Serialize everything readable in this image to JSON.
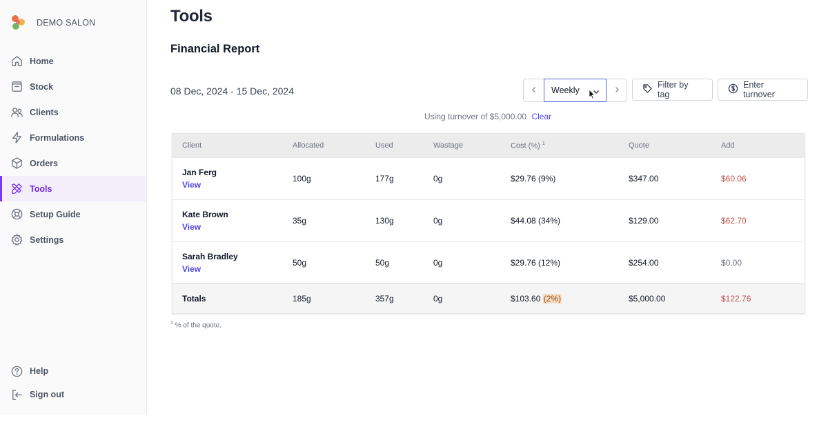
{
  "brand": {
    "name": "DEMO SALON"
  },
  "sidebar": {
    "items": [
      {
        "label": "Home",
        "icon": "home-icon"
      },
      {
        "label": "Stock",
        "icon": "box-icon"
      },
      {
        "label": "Clients",
        "icon": "users-icon"
      },
      {
        "label": "Formulations",
        "icon": "bolt-icon"
      },
      {
        "label": "Orders",
        "icon": "cube-icon"
      },
      {
        "label": "Tools",
        "icon": "tools-icon",
        "active": true
      },
      {
        "label": "Setup Guide",
        "icon": "lifebuoy-icon"
      },
      {
        "label": "Settings",
        "icon": "gear-icon"
      }
    ],
    "bottom": [
      {
        "label": "Help",
        "icon": "help-icon"
      },
      {
        "label": "Sign out",
        "icon": "sign-out-icon"
      }
    ]
  },
  "page": {
    "title": "Tools",
    "section_title": "Financial Report",
    "date_range": "08 Dec, 2024 - 15 Dec, 2024"
  },
  "controls": {
    "period": "Weekly",
    "filter_label": "Filter by tag",
    "turnover_label": "Enter turnover"
  },
  "turnover_note": {
    "text": "Using turnover of $5,000.00",
    "clear": "Clear"
  },
  "table": {
    "headers": {
      "client": "Client",
      "allocated": "Allocated",
      "used": "Used",
      "wastage": "Wastage",
      "cost": "Cost (%)",
      "cost_sup": "1",
      "quote": "Quote",
      "add": "Add"
    },
    "view_label": "View",
    "rows": [
      {
        "client": "Jan Ferg",
        "allocated": "100g",
        "used": "177g",
        "wastage": "0g",
        "cost": "$29.76 (9%)",
        "quote": "$347.00",
        "add": "$60.06"
      },
      {
        "client": "Kate Brown",
        "allocated": "35g",
        "used": "130g",
        "wastage": "0g",
        "cost": "$44.08 (34%)",
        "quote": "$129.00",
        "add": "$62.70"
      },
      {
        "client": "Sarah Bradley",
        "allocated": "50g",
        "used": "50g",
        "wastage": "0g",
        "cost": "$29.76 (12%)",
        "quote": "$254.00",
        "add": "$0.00"
      }
    ],
    "totals": {
      "label": "Totals",
      "allocated": "185g",
      "used": "357g",
      "wastage": "0g",
      "cost": "$103.60",
      "cost_pct": "(2%)",
      "quote": "$5,000.00",
      "add": "$122.76"
    }
  },
  "footnote": {
    "sup": "1",
    "text": "% of the quote."
  },
  "colors": {
    "accent": "#7c3aed",
    "link": "#4f46e5",
    "negative": "#c0504d",
    "highlight": "#f7dcc4"
  }
}
